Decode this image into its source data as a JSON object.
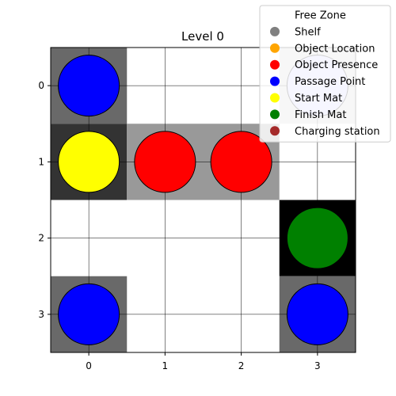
{
  "chart_data": {
    "type": "heatmap",
    "title": "Level 0",
    "xlabel": "",
    "ylabel": "",
    "x_ticks": [
      "0",
      "1",
      "2",
      "3"
    ],
    "y_ticks": [
      "0",
      "1",
      "2",
      "3"
    ],
    "grid": true,
    "cells": [
      {
        "row": 0,
        "col": 0,
        "shade": "#696969"
      },
      {
        "row": 0,
        "col": 3,
        "shade": "#d3d3d3"
      },
      {
        "row": 1,
        "col": 0,
        "shade": "#333333"
      },
      {
        "row": 1,
        "col": 1,
        "shade": "#999999"
      },
      {
        "row": 1,
        "col": 2,
        "shade": "#999999"
      },
      {
        "row": 2,
        "col": 3,
        "shade": "#000000"
      },
      {
        "row": 3,
        "col": 0,
        "shade": "#696969"
      },
      {
        "row": 3,
        "col": 3,
        "shade": "#696969"
      }
    ],
    "markers": [
      {
        "row": 0,
        "col": 0,
        "category": "Passage Point",
        "color": "#0000ff"
      },
      {
        "row": 0,
        "col": 3,
        "category": "Passage Point",
        "color": "#ccccff"
      },
      {
        "row": 1,
        "col": 0,
        "category": "Start Mat",
        "color": "#ffff00"
      },
      {
        "row": 1,
        "col": 1,
        "category": "Object Presence",
        "color": "#ff0000"
      },
      {
        "row": 1,
        "col": 2,
        "category": "Object Presence",
        "color": "#ff0000"
      },
      {
        "row": 2,
        "col": 3,
        "category": "Finish Mat",
        "color": "#008000"
      },
      {
        "row": 3,
        "col": 0,
        "category": "Passage Point",
        "color": "#0000ff"
      },
      {
        "row": 3,
        "col": 3,
        "category": "Passage Point",
        "color": "#0000ff"
      }
    ],
    "legend_position": "top-right",
    "legend": [
      {
        "label": "Free Zone",
        "color": "#ffffff"
      },
      {
        "label": "Shelf",
        "color": "#808080"
      },
      {
        "label": "Object Location",
        "color": "#ffa500"
      },
      {
        "label": "Object Presence",
        "color": "#ff0000"
      },
      {
        "label": "Passage Point",
        "color": "#0000ff"
      },
      {
        "label": "Start Mat",
        "color": "#ffff00"
      },
      {
        "label": "Finish Mat",
        "color": "#008000"
      },
      {
        "label": "Charging station",
        "color": "#a52a2a"
      }
    ]
  }
}
